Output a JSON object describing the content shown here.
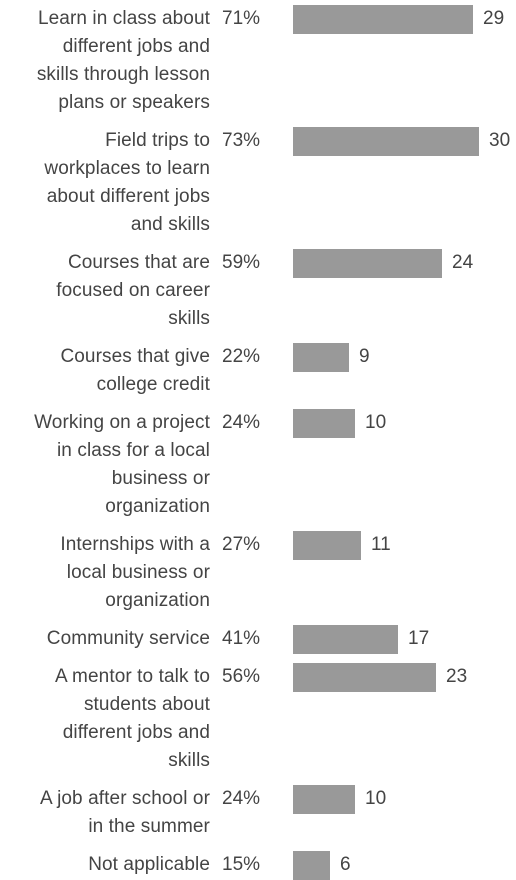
{
  "chart_data": {
    "type": "bar",
    "orientation": "horizontal",
    "categories": [
      "Learn in class about different jobs and skills through lesson plans or speakers",
      "Field trips to workplaces to learn about different jobs and skills",
      "Courses that are focused on career skills",
      "Courses that give college credit",
      "Working on a project in class for a local business or organization",
      "Internships with a local business or organization",
      "Community service",
      "A mentor to talk to students about different jobs and skills",
      "A job after school or in the summer",
      "Not applicable"
    ],
    "category_lines": [
      [
        "Learn in class about",
        "different jobs and",
        "skills through lesson",
        "plans or speakers"
      ],
      [
        "Field trips to",
        "workplaces to learn",
        "about different jobs",
        "and skills"
      ],
      [
        "Courses that are",
        "focused on career",
        "skills"
      ],
      [
        "Courses that give",
        "college credit"
      ],
      [
        "Working on a project",
        "in class for a local",
        "business or",
        "organization"
      ],
      [
        "Internships with a",
        "local business or",
        "organization"
      ],
      [
        "Community service"
      ],
      [
        "A mentor to talk to",
        "students about",
        "different jobs and",
        "skills"
      ],
      [
        "A job after school or",
        "in the summer"
      ],
      [
        "Not applicable"
      ]
    ],
    "percent_labels": [
      "71%",
      "73%",
      "59%",
      "22%",
      "24%",
      "27%",
      "41%",
      "56%",
      "24%",
      "15%"
    ],
    "values": [
      29,
      30,
      24,
      9,
      10,
      11,
      17,
      23,
      10,
      6
    ],
    "xlim": [
      0,
      30
    ],
    "bar_color": "#999999",
    "text_color": "#444444"
  }
}
